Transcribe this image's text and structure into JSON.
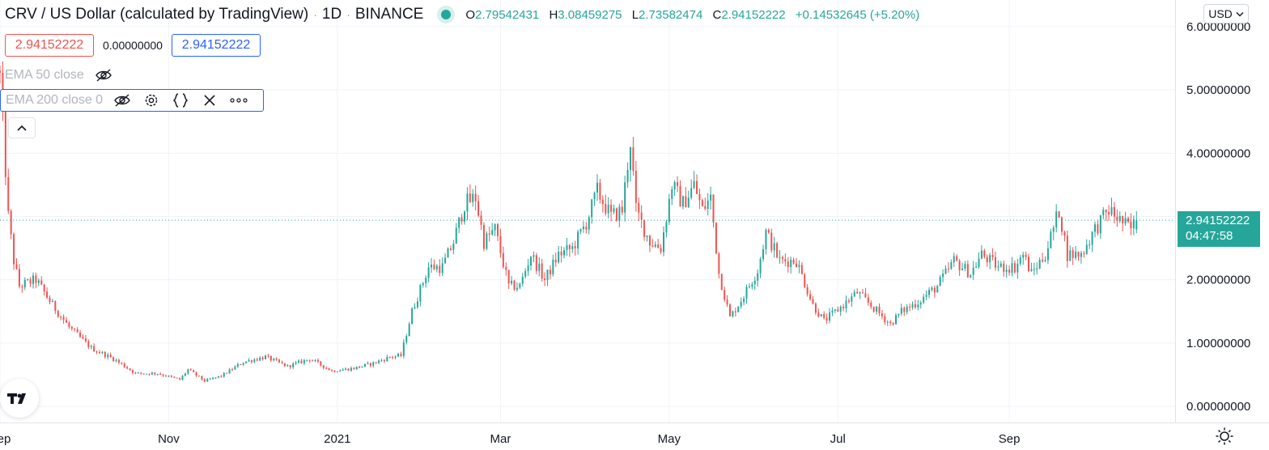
{
  "header": {
    "symbol_title": "CRV / US Dollar (calculated by TradingView)",
    "interval": "1D",
    "exchange": "BINANCE",
    "ohlc": {
      "o_label": "O",
      "o": "2.79542431",
      "h_label": "H",
      "h": "3.08459275",
      "l_label": "L",
      "l": "2.73582474",
      "c_label": "C",
      "c": "2.94152222",
      "change": "+0.14532645 (+5.20%)"
    }
  },
  "trade": {
    "sell": "2.94152222",
    "spread": "0.00000000",
    "buy": "2.94152222"
  },
  "indicators": [
    {
      "label": "EMA 50 close"
    },
    {
      "label": "EMA 200 close 0"
    }
  ],
  "currency": "USD",
  "last_price": {
    "value": "2.94152222",
    "countdown": "04:47:58"
  },
  "colors": {
    "up": "#26a69a",
    "down": "#ef5350",
    "accent": "#2962ff",
    "grid": "#f0f3fa"
  },
  "chart_data": {
    "type": "candlestick",
    "ylim": [
      0,
      6
    ],
    "y_ticks": [
      {
        "value": 0,
        "label": "0.00000000"
      },
      {
        "value": 1,
        "label": "1.00000000"
      },
      {
        "value": 2,
        "label": "2.00000000"
      },
      {
        "value": 3,
        "label": "3.00000000"
      },
      {
        "value": 4,
        "label": "4.00000000"
      },
      {
        "value": 5,
        "label": "5.00000000"
      },
      {
        "value": 6,
        "label": "6.00000000"
      }
    ],
    "x_ticks": [
      {
        "date": "2020-09-01",
        "label": "Sep"
      },
      {
        "date": "2020-11-01",
        "label": "Nov"
      },
      {
        "date": "2021-01-01",
        "label": "2021"
      },
      {
        "date": "2021-03-01",
        "label": "Mar"
      },
      {
        "date": "2021-05-01",
        "label": "May"
      },
      {
        "date": "2021-07-01",
        "label": "Jul"
      },
      {
        "date": "2021-09-01",
        "label": "Sep"
      }
    ],
    "grid": true,
    "last_close": 2.94152222,
    "close_anchors": [
      [
        "2020-09-01",
        5.2
      ],
      [
        "2020-09-04",
        3.0
      ],
      [
        "2020-09-06",
        2.3
      ],
      [
        "2020-09-08",
        1.9
      ],
      [
        "2020-09-14",
        2.0
      ],
      [
        "2020-09-20",
        1.6
      ],
      [
        "2020-09-26",
        1.25
      ],
      [
        "2020-10-04",
        0.92
      ],
      [
        "2020-10-12",
        0.75
      ],
      [
        "2020-10-20",
        0.52
      ],
      [
        "2020-10-28",
        0.52
      ],
      [
        "2020-11-05",
        0.42
      ],
      [
        "2020-11-08",
        0.58
      ],
      [
        "2020-11-14",
        0.4
      ],
      [
        "2020-11-20",
        0.48
      ],
      [
        "2020-11-28",
        0.7
      ],
      [
        "2020-12-06",
        0.78
      ],
      [
        "2020-12-14",
        0.63
      ],
      [
        "2020-12-22",
        0.75
      ],
      [
        "2020-12-30",
        0.56
      ],
      [
        "2021-01-07",
        0.6
      ],
      [
        "2021-01-14",
        0.68
      ],
      [
        "2021-01-20",
        0.78
      ],
      [
        "2021-01-24",
        0.8
      ],
      [
        "2021-01-28",
        1.5
      ],
      [
        "2021-02-03",
        2.2
      ],
      [
        "2021-02-08",
        2.2
      ],
      [
        "2021-02-12",
        2.6
      ],
      [
        "2021-02-16",
        3.2
      ],
      [
        "2021-02-20",
        3.3
      ],
      [
        "2021-02-23",
        2.6
      ],
      [
        "2021-02-27",
        2.8
      ],
      [
        "2021-03-04",
        1.9
      ],
      [
        "2021-03-08",
        1.9
      ],
      [
        "2021-03-12",
        2.4
      ],
      [
        "2021-03-17",
        2.0
      ],
      [
        "2021-03-22",
        2.4
      ],
      [
        "2021-03-27",
        2.5
      ],
      [
        "2021-04-01",
        2.9
      ],
      [
        "2021-04-05",
        3.4
      ],
      [
        "2021-04-10",
        3.0
      ],
      [
        "2021-04-14",
        3.1
      ],
      [
        "2021-04-17",
        4.2
      ],
      [
        "2021-04-19",
        3.1
      ],
      [
        "2021-04-24",
        2.6
      ],
      [
        "2021-04-28",
        2.5
      ],
      [
        "2021-05-02",
        3.5
      ],
      [
        "2021-05-06",
        3.2
      ],
      [
        "2021-05-10",
        3.5
      ],
      [
        "2021-05-13",
        3.1
      ],
      [
        "2021-05-16",
        3.3
      ],
      [
        "2021-05-19",
        2.1
      ],
      [
        "2021-05-23",
        1.4
      ],
      [
        "2021-05-28",
        1.75
      ],
      [
        "2021-06-02",
        2.15
      ],
      [
        "2021-06-05",
        2.75
      ],
      [
        "2021-06-10",
        2.3
      ],
      [
        "2021-06-16",
        2.3
      ],
      [
        "2021-06-22",
        1.6
      ],
      [
        "2021-06-26",
        1.35
      ],
      [
        "2021-07-03",
        1.6
      ],
      [
        "2021-07-08",
        1.8
      ],
      [
        "2021-07-14",
        1.55
      ],
      [
        "2021-07-20",
        1.3
      ],
      [
        "2021-07-24",
        1.5
      ],
      [
        "2021-07-30",
        1.65
      ],
      [
        "2021-08-06",
        1.9
      ],
      [
        "2021-08-12",
        2.3
      ],
      [
        "2021-08-18",
        2.1
      ],
      [
        "2021-08-22",
        2.4
      ],
      [
        "2021-08-28",
        2.2
      ],
      [
        "2021-09-03",
        2.2
      ],
      [
        "2021-09-06",
        2.4
      ],
      [
        "2021-09-09",
        2.1
      ],
      [
        "2021-09-14",
        2.4
      ],
      [
        "2021-09-19",
        3.1
      ],
      [
        "2021-09-22",
        2.4
      ],
      [
        "2021-09-27",
        2.4
      ],
      [
        "2021-10-02",
        2.8
      ],
      [
        "2021-10-07",
        3.1
      ],
      [
        "2021-10-12",
        2.9
      ],
      [
        "2021-10-15",
        2.8
      ],
      [
        "2021-10-17",
        2.94152222
      ]
    ]
  }
}
